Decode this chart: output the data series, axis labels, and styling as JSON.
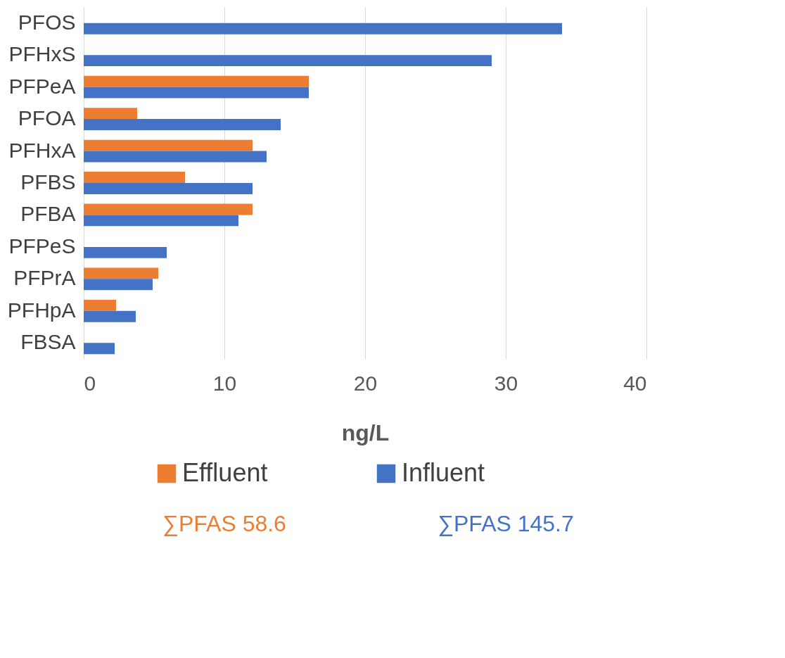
{
  "chart_data": {
    "type": "bar",
    "orientation": "horizontal",
    "xlabel": "ng/L",
    "categories": [
      "PFOS",
      "PFHxS",
      "PFPeA",
      "PFOA",
      "PFHxA",
      "PFBS",
      "PFBA",
      "PFPeS",
      "PFPrA",
      "PFHpA",
      "FBSA"
    ],
    "series": [
      {
        "name": "Effluent",
        "color": "#ed7d31",
        "values": [
          null,
          null,
          16,
          3.8,
          12,
          7.2,
          12,
          null,
          5.3,
          2.3,
          null
        ]
      },
      {
        "name": "Influent",
        "color": "#4472c4",
        "values": [
          34,
          29,
          16,
          14,
          13,
          12,
          11,
          5.9,
          4.9,
          3.7,
          2.2
        ]
      }
    ],
    "xlim": [
      0,
      40
    ],
    "xticks": [
      0,
      10,
      20,
      30,
      40
    ],
    "grid": "x",
    "legend": "bottom",
    "annotations": [
      "∑PFAS 58.6",
      "∑PFAS 145.7"
    ]
  }
}
